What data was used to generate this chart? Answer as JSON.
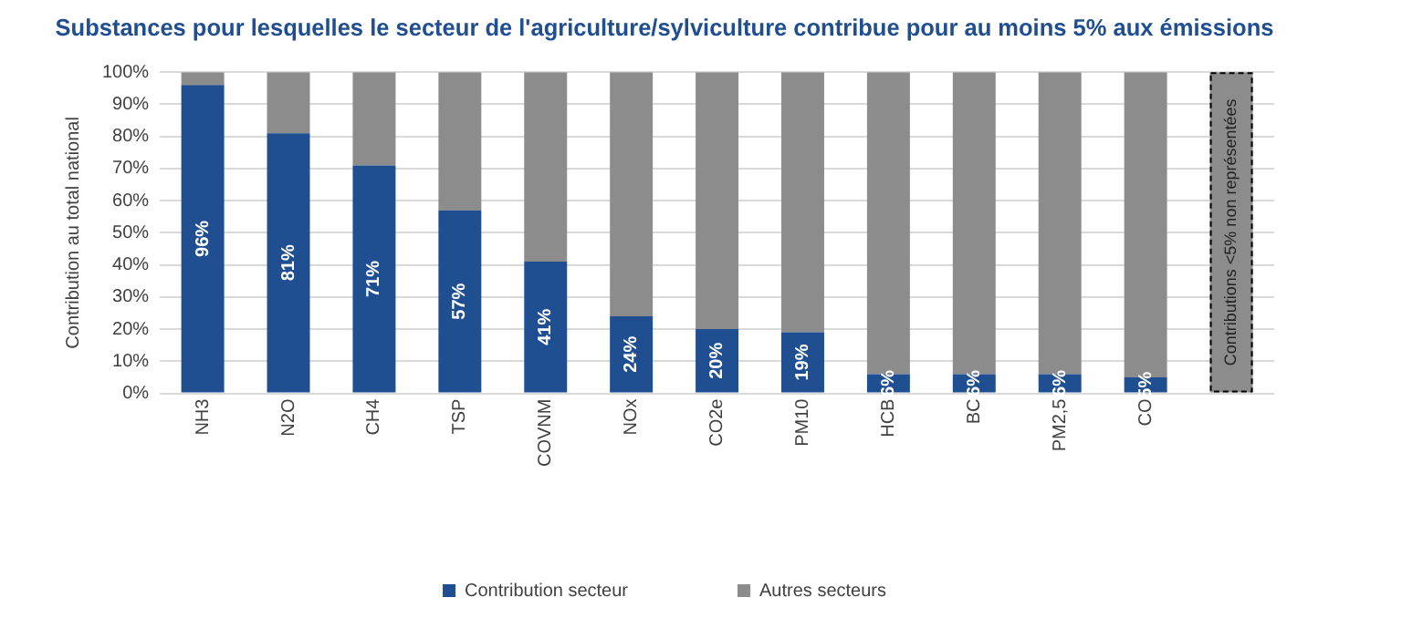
{
  "chart_data": {
    "type": "bar",
    "title": "Substances pour lesquelles le secteur de l'agriculture/sylviculture contribue pour au moins 5% aux émissions",
    "ylabel": "Contribution au total national",
    "categories": [
      "NH3",
      "N2O",
      "CH4",
      "TSP",
      "COVNM",
      "NOx",
      "CO2e",
      "PM10",
      "HCB",
      "BC",
      "PM2,5",
      "CO",
      null
    ],
    "series": [
      {
        "name": "Contribution secteur",
        "color": "#1f4e91",
        "values": [
          96,
          81,
          71,
          57,
          41,
          24,
          20,
          19,
          6,
          6,
          6,
          5,
          null
        ],
        "value_labels": [
          "96%",
          "81%",
          "71%",
          "57%",
          "41%",
          "24%",
          "20%",
          "19%",
          "6%",
          "6%",
          "6%",
          "5%",
          null
        ]
      },
      {
        "name": "Autres secteurs",
        "color": "#8c8c8c",
        "values": [
          4,
          19,
          29,
          43,
          59,
          76,
          80,
          81,
          94,
          94,
          94,
          95,
          null
        ]
      },
      {
        "color": "#8c8c8c",
        "line_style": "dashed",
        "values": [
          null,
          null,
          null,
          null,
          null,
          null,
          null,
          null,
          null,
          null,
          null,
          null,
          100
        ]
      }
    ],
    "stacked": true,
    "ylim": [
      0,
      100
    ],
    "yticks": [
      {
        "value": 0,
        "label": "0%"
      },
      {
        "value": 10,
        "label": "10%"
      },
      {
        "value": 20,
        "label": "20%"
      },
      {
        "value": 30,
        "label": "30%"
      },
      {
        "value": 40,
        "label": "40%"
      },
      {
        "value": 50,
        "label": "50%"
      },
      {
        "value": 60,
        "label": "60%"
      },
      {
        "value": 70,
        "label": "70%"
      },
      {
        "value": 80,
        "label": "80%"
      },
      {
        "value": 90,
        "label": "90%"
      },
      {
        "value": 100,
        "label": "100%"
      }
    ],
    "grid": "y",
    "legend": "bottom",
    "annotations": [
      "Contributions <5% non représentées"
    ]
  }
}
